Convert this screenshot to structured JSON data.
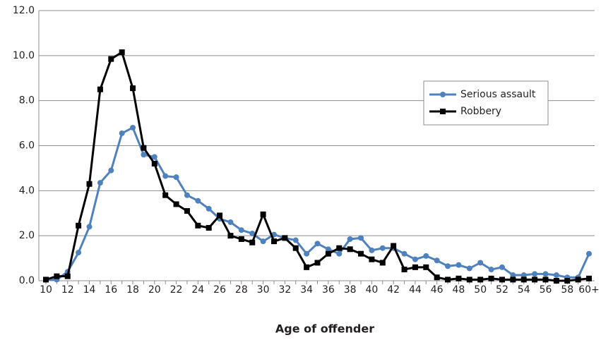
{
  "chart_data": {
    "type": "line",
    "x_label": "Age of offender",
    "categories": [
      "10",
      null,
      "12",
      null,
      "14",
      null,
      "16",
      null,
      "18",
      null,
      "20",
      null,
      "22",
      null,
      "24",
      null,
      "26",
      null,
      "28",
      null,
      "30",
      null,
      "32",
      null,
      "34",
      null,
      "36",
      null,
      "38",
      null,
      "40",
      null,
      "42",
      null,
      "44",
      null,
      "46",
      null,
      "48",
      null,
      "50",
      null,
      "52",
      null,
      "54",
      null,
      "56",
      null,
      "58",
      null,
      "60+"
    ],
    "series": [
      {
        "name": "Serious assault",
        "color": "#4f81bd",
        "marker": "circle",
        "values": [
          0.05,
          0.05,
          0.4,
          1.25,
          2.4,
          4.35,
          4.9,
          6.55,
          6.8,
          5.6,
          5.5,
          4.65,
          4.6,
          3.8,
          3.55,
          3.2,
          2.75,
          2.6,
          2.25,
          2.1,
          1.75,
          2.05,
          1.9,
          1.8,
          1.2,
          1.65,
          1.4,
          1.2,
          1.85,
          1.9,
          1.35,
          1.45,
          1.45,
          1.2,
          0.95,
          1.1,
          0.9,
          0.65,
          0.7,
          0.55,
          0.8,
          0.5,
          0.6,
          0.25,
          0.25,
          0.3,
          0.3,
          0.25,
          0.15,
          0.15,
          1.2
        ]
      },
      {
        "name": "Robbery",
        "color": "#000000",
        "marker": "square",
        "values": [
          0.05,
          0.2,
          0.2,
          2.45,
          4.3,
          8.5,
          9.85,
          10.15,
          8.55,
          5.9,
          5.2,
          3.8,
          3.4,
          3.1,
          2.45,
          2.35,
          2.9,
          2.0,
          1.85,
          1.7,
          2.95,
          1.75,
          1.9,
          1.45,
          0.6,
          0.8,
          1.2,
          1.45,
          1.4,
          1.2,
          0.95,
          0.8,
          1.55,
          0.5,
          0.6,
          0.6,
          0.15,
          0.05,
          0.1,
          0.05,
          0.05,
          0.1,
          0.05,
          0.05,
          0.05,
          0.05,
          0.05,
          0.0,
          0.0,
          0.05,
          0.1
        ]
      }
    ],
    "ylim": [
      0,
      12
    ],
    "yticks": [
      {
        "value": 0,
        "label": "0.0"
      },
      {
        "value": 2,
        "label": "2.0"
      },
      {
        "value": 4,
        "label": "4.0"
      },
      {
        "value": 6,
        "label": "6.0"
      },
      {
        "value": 8,
        "label": "8.0"
      },
      {
        "value": 10,
        "label": "10.0"
      },
      {
        "value": 12,
        "label": "12.0"
      }
    ],
    "grid": true,
    "legend": "right"
  }
}
